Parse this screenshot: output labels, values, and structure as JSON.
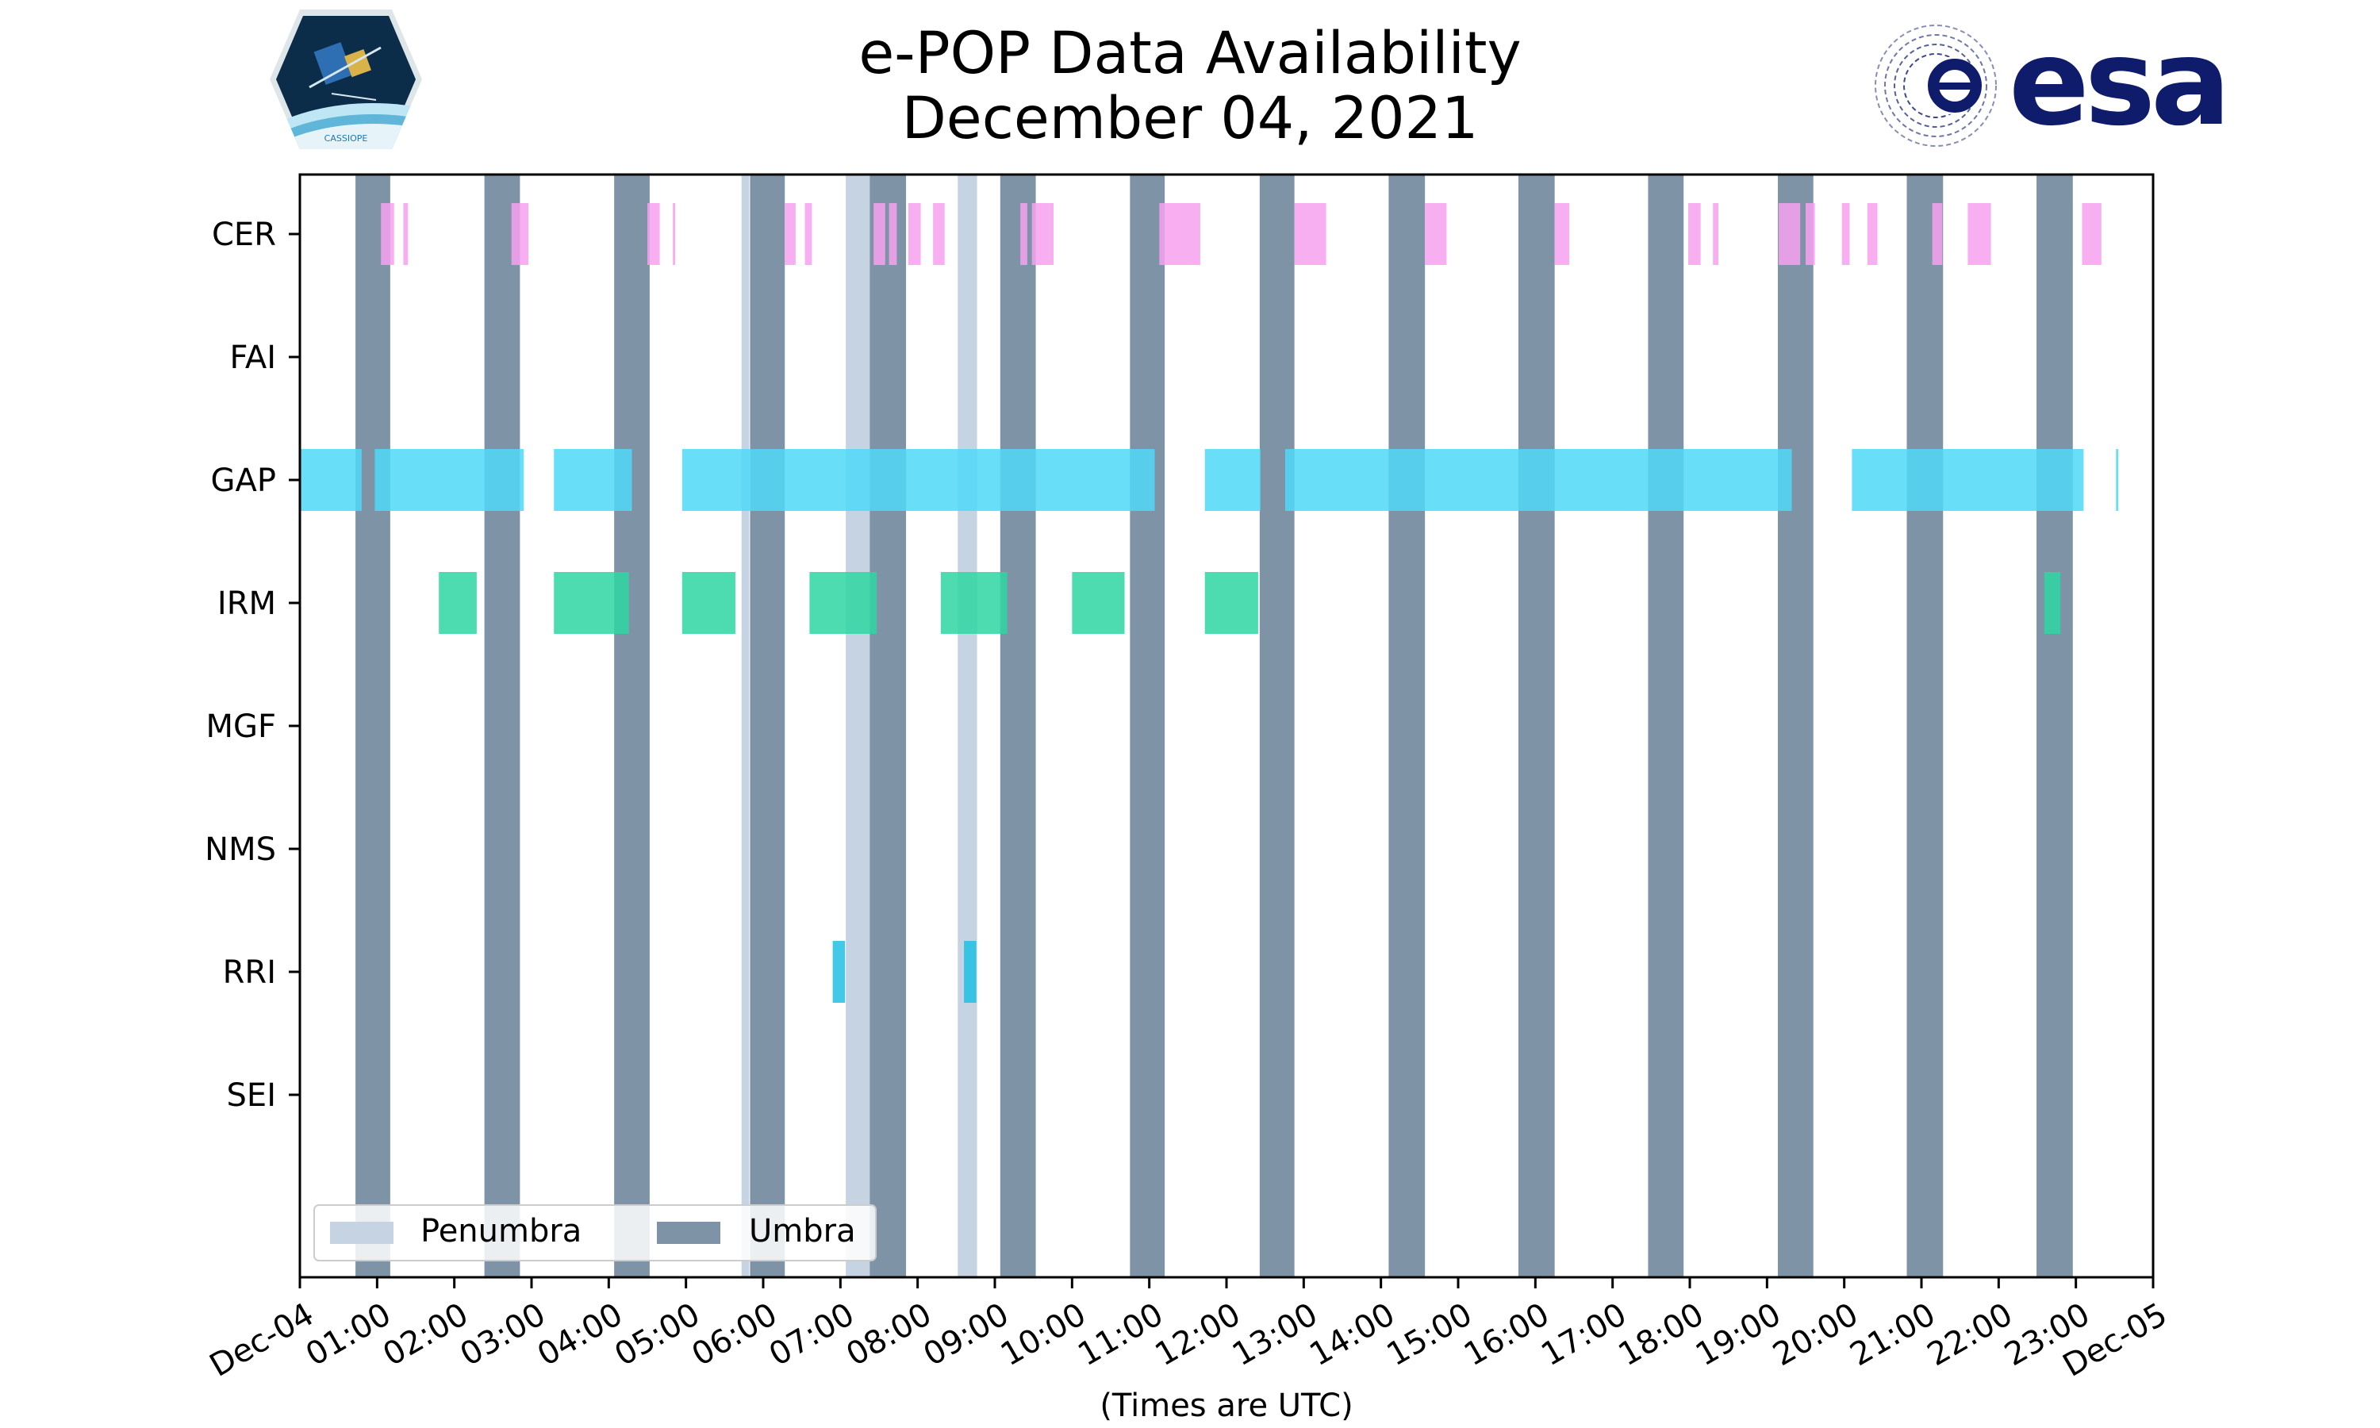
{
  "logos": {
    "cassiope_label": "CASSIOPE",
    "esa_label": "esa"
  },
  "colors": {
    "CER": "#f7a1ee",
    "GAP": "#4fd8f8",
    "IRM": "#2ed6a2",
    "RRI": "#20bfe3",
    "penumbra": "#c5d3e2",
    "umbra": "#7f93a7",
    "esa_blue": "#0f1b6b",
    "cassiope_bg": "#0c2d4a"
  },
  "chart_data": {
    "type": "timeline",
    "title": "e-POP Data Availability",
    "subtitle": "December 04, 2021",
    "xlabel": "(Times are UTC)",
    "x_unit": "hours since Dec-04 00:00 UTC",
    "xlim": [
      0,
      24
    ],
    "x_ticks": [
      {
        "label": "Dec-04",
        "value": 0
      },
      {
        "label": "01:00",
        "value": 1
      },
      {
        "label": "02:00",
        "value": 2
      },
      {
        "label": "03:00",
        "value": 3
      },
      {
        "label": "04:00",
        "value": 4
      },
      {
        "label": "05:00",
        "value": 5
      },
      {
        "label": "06:00",
        "value": 6
      },
      {
        "label": "07:00",
        "value": 7
      },
      {
        "label": "08:00",
        "value": 8
      },
      {
        "label": "09:00",
        "value": 9
      },
      {
        "label": "10:00",
        "value": 10
      },
      {
        "label": "11:00",
        "value": 11
      },
      {
        "label": "12:00",
        "value": 12
      },
      {
        "label": "13:00",
        "value": 13
      },
      {
        "label": "14:00",
        "value": 14
      },
      {
        "label": "15:00",
        "value": 15
      },
      {
        "label": "16:00",
        "value": 16
      },
      {
        "label": "17:00",
        "value": 17
      },
      {
        "label": "18:00",
        "value": 18
      },
      {
        "label": "19:00",
        "value": 19
      },
      {
        "label": "20:00",
        "value": 20
      },
      {
        "label": "21:00",
        "value": 21
      },
      {
        "label": "22:00",
        "value": 22
      },
      {
        "label": "23:00",
        "value": 23
      },
      {
        "label": "Dec-05",
        "value": 24
      }
    ],
    "categories": [
      "CER",
      "FAI",
      "GAP",
      "IRM",
      "MGF",
      "NMS",
      "RRI",
      "SEI"
    ],
    "legend": {
      "placement": "lower-left",
      "entries": [
        {
          "label": "Penumbra",
          "key": "penumbra"
        },
        {
          "label": "Umbra",
          "key": "umbra"
        }
      ]
    },
    "grid": false,
    "penumbra": [
      [
        5.72,
        5.82
      ],
      [
        7.07,
        7.38
      ],
      [
        8.52,
        8.77
      ]
    ],
    "umbra": [
      [
        0.72,
        1.17
      ],
      [
        2.39,
        2.85
      ],
      [
        4.07,
        4.53
      ],
      [
        5.83,
        6.28
      ],
      [
        7.38,
        7.85
      ],
      [
        9.07,
        9.53
      ],
      [
        10.75,
        11.2
      ],
      [
        12.43,
        12.88
      ],
      [
        14.1,
        14.57
      ],
      [
        15.78,
        16.25
      ],
      [
        17.46,
        17.92
      ],
      [
        19.14,
        19.6
      ],
      [
        20.81,
        21.28
      ],
      [
        22.49,
        22.96
      ]
    ],
    "series": [
      {
        "name": "CER",
        "intervals": [
          [
            1.05,
            1.22
          ],
          [
            1.34,
            1.4
          ],
          [
            2.74,
            2.96
          ],
          [
            4.5,
            4.66
          ],
          [
            4.83,
            4.86
          ],
          [
            6.28,
            6.42
          ],
          [
            6.54,
            6.63
          ],
          [
            7.43,
            7.58
          ],
          [
            7.63,
            7.73
          ],
          [
            7.88,
            8.04
          ],
          [
            8.2,
            8.35
          ],
          [
            9.33,
            9.42
          ],
          [
            9.48,
            9.76
          ],
          [
            11.13,
            11.66
          ],
          [
            12.88,
            13.29
          ],
          [
            14.57,
            14.85
          ],
          [
            16.25,
            16.44
          ],
          [
            17.98,
            18.14
          ],
          [
            18.3,
            18.37
          ],
          [
            19.15,
            19.43
          ],
          [
            19.5,
            19.62
          ],
          [
            19.97,
            20.07
          ],
          [
            20.3,
            20.43
          ],
          [
            21.14,
            21.27
          ],
          [
            21.6,
            21.9
          ],
          [
            23.08,
            23.33
          ]
        ]
      },
      {
        "name": "FAI",
        "intervals": []
      },
      {
        "name": "GAP",
        "intervals": [
          [
            0.0,
            0.8
          ],
          [
            0.97,
            2.9
          ],
          [
            3.29,
            4.3
          ],
          [
            4.95,
            11.07
          ],
          [
            11.72,
            12.44
          ],
          [
            12.76,
            19.32
          ],
          [
            20.1,
            23.1
          ],
          [
            23.52,
            23.55
          ]
        ]
      },
      {
        "name": "IRM",
        "intervals": [
          [
            1.8,
            2.29
          ],
          [
            3.29,
            4.26
          ],
          [
            4.95,
            5.64
          ],
          [
            6.6,
            7.47
          ],
          [
            8.3,
            9.16
          ],
          [
            10.0,
            10.68
          ],
          [
            11.72,
            12.41
          ],
          [
            22.59,
            22.8
          ]
        ]
      },
      {
        "name": "MGF",
        "intervals": []
      },
      {
        "name": "NMS",
        "intervals": []
      },
      {
        "name": "RRI",
        "intervals": [
          [
            6.9,
            7.06
          ],
          [
            8.6,
            8.76
          ]
        ]
      },
      {
        "name": "SEI",
        "intervals": []
      }
    ]
  }
}
